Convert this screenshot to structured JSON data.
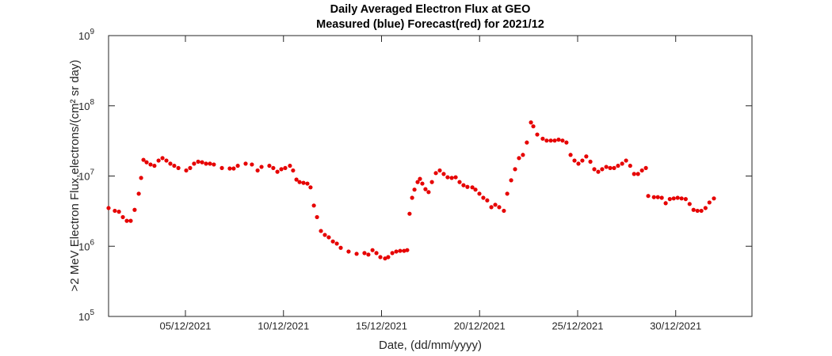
{
  "chart_data": {
    "type": "scatter",
    "title": "Daily Averaged Electron Flux at GEO",
    "subtitle": "Measured (blue) Forecast(red) for 2021/12",
    "x_label": "Date, (dd/mm/yyyy)",
    "y_label": ">2 MeV Electron Flux,electrons/(cm² sr day)",
    "yscale": "log",
    "xlim": [
      1.08,
      33.89
    ],
    "ylim": [
      100000,
      1000000000
    ],
    "xticks": [
      {
        "value": 5,
        "label": "05/12/2021"
      },
      {
        "value": 10,
        "label": "10/12/2021"
      },
      {
        "value": 15,
        "label": "15/12/2021"
      },
      {
        "value": 20,
        "label": "20/12/2021"
      },
      {
        "value": 25,
        "label": "25/12/2021"
      },
      {
        "value": 30,
        "label": "30/12/2021"
      }
    ],
    "yticks": [
      {
        "value": 100000,
        "label": "10",
        "exponent": "5"
      },
      {
        "value": 1000000,
        "label": "10",
        "exponent": "6"
      },
      {
        "value": 10000000,
        "label": "10",
        "exponent": "7"
      },
      {
        "value": 100000000,
        "label": "10",
        "exponent": "8"
      },
      {
        "value": 1000000000,
        "label": "10",
        "exponent": "9"
      }
    ],
    "series": [
      {
        "color": "#e60000",
        "x": [
          1.08,
          1.4,
          1.61,
          1.81,
          2.01,
          2.21,
          2.41,
          2.62,
          2.74,
          2.86,
          3.02,
          3.22,
          3.42,
          3.63,
          3.83,
          4.03,
          4.23,
          4.43,
          4.64,
          5.04,
          5.24,
          5.44,
          5.65,
          5.85,
          6.05,
          6.25,
          6.45,
          6.86,
          7.26,
          7.46,
          7.67,
          8.07,
          8.39,
          8.68,
          8.88,
          9.28,
          9.48,
          9.69,
          9.89,
          10.09,
          10.33,
          10.49,
          10.66,
          10.82,
          11.02,
          11.22,
          11.38,
          11.55,
          11.71,
          11.91,
          12.11,
          12.31,
          12.52,
          12.72,
          12.92,
          13.32,
          13.73,
          14.13,
          14.33,
          14.54,
          14.74,
          14.94,
          15.18,
          15.34,
          15.55,
          15.75,
          15.95,
          16.15,
          16.31,
          16.43,
          16.56,
          16.68,
          16.84,
          16.96,
          17.08,
          17.24,
          17.4,
          17.57,
          17.77,
          17.97,
          18.17,
          18.37,
          18.58,
          18.78,
          18.98,
          19.18,
          19.38,
          19.63,
          19.79,
          19.99,
          20.19,
          20.39,
          20.6,
          20.8,
          21.0,
          21.24,
          21.41,
          21.61,
          21.81,
          22.01,
          22.21,
          22.41,
          22.62,
          22.74,
          22.94,
          23.22,
          23.42,
          23.63,
          23.83,
          24.03,
          24.23,
          24.43,
          24.64,
          24.84,
          25.04,
          25.24,
          25.44,
          25.65,
          25.85,
          26.05,
          26.25,
          26.46,
          26.66,
          26.86,
          27.06,
          27.27,
          27.47,
          27.68,
          27.88,
          28.08,
          28.28,
          28.48,
          28.6,
          28.89,
          29.09,
          29.29,
          29.49,
          29.7,
          29.9,
          30.1,
          30.3,
          30.51,
          30.71,
          30.91,
          31.11,
          31.31,
          31.52,
          31.72,
          31.95
        ],
        "values": [
          3500000.0,
          3200000.0,
          3100000.0,
          2600000.0,
          2300000.0,
          2300000.0,
          3300000.0,
          5600000.0,
          9400000.0,
          17000000.0,
          15700000.0,
          14600000.0,
          14000000.0,
          16600000.0,
          18000000.0,
          16600000.0,
          15000000.0,
          14000000.0,
          13000000.0,
          12000000.0,
          13000000.0,
          15000000.0,
          16000000.0,
          15700000.0,
          15000000.0,
          15000000.0,
          14600000.0,
          13000000.0,
          12800000.0,
          12800000.0,
          14000000.0,
          15000000.0,
          14600000.0,
          12000000.0,
          13500000.0,
          14000000.0,
          13000000.0,
          11500000.0,
          12500000.0,
          13000000.0,
          14000000.0,
          12000000.0,
          8900000.0,
          8200000.0,
          8000000.0,
          7800000.0,
          6900000.0,
          3800000.0,
          2600000.0,
          1650000.0,
          1450000.0,
          1340000.0,
          1170000.0,
          1090000.0,
          950000.0,
          840000.0,
          780000.0,
          800000.0,
          760000.0,
          880000.0,
          800000.0,
          700000.0,
          670000.0,
          700000.0,
          800000.0,
          840000.0,
          860000.0,
          860000.0,
          880000.0,
          2900000.0,
          4900000.0,
          6400000.0,
          8200000.0,
          9100000.0,
          7800000.0,
          6500000.0,
          5900000.0,
          8200000.0,
          11000000.0,
          12000000.0,
          10700000.0,
          9600000.0,
          9400000.0,
          9600000.0,
          8200000.0,
          7400000.0,
          7000000.0,
          6900000.0,
          6400000.0,
          5600000.0,
          4900000.0,
          4500000.0,
          3600000.0,
          3900000.0,
          3600000.0,
          3200000.0,
          5600000.0,
          8700000.0,
          12500000.0,
          18000000.0,
          20000000.0,
          30000000.0,
          58000000.0,
          51000000.0,
          39000000.0,
          34000000.0,
          32000000.0,
          32000000.0,
          32000000.0,
          33000000.0,
          32000000.0,
          30000000.0,
          20000000.0,
          16600000.0,
          15000000.0,
          16600000.0,
          19000000.0,
          16000000.0,
          12500000.0,
          11500000.0,
          12500000.0,
          13500000.0,
          13000000.0,
          13000000.0,
          14000000.0,
          15000000.0,
          16600000.0,
          14000000.0,
          10700000.0,
          10700000.0,
          12000000.0,
          13000000.0,
          5200000.0,
          5000000.0,
          5000000.0,
          4900000.0,
          4100000.0,
          4700000.0,
          4800000.0,
          4900000.0,
          4800000.0,
          4700000.0,
          4000000.0,
          3300000.0,
          3200000.0,
          3200000.0,
          3500000.0,
          4200000.0,
          4800000.0
        ]
      }
    ]
  }
}
